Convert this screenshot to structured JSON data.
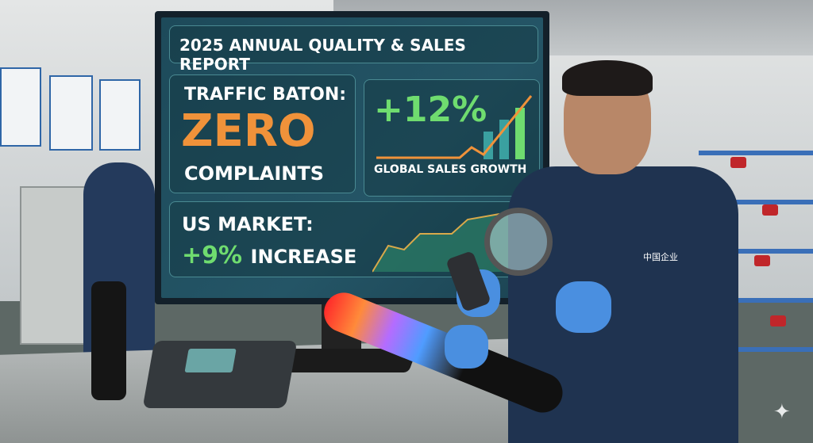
{
  "monitor": {
    "title": "2025 ANNUAL QUALITY & SALES REPORT",
    "baton_label": "TRAFFIC BATON:",
    "zero": "ZERO",
    "complaints": "COMPLAINTS",
    "growth_value": "+12%",
    "growth_label": "GLOBAL SALES GROWTH",
    "us_label": "US MARKET:",
    "us_value": "+9%",
    "us_increase": "INCREASE"
  },
  "jacket_logo_text": "中国企业",
  "colors": {
    "orange": "#f0923a",
    "green": "#6fdc6f",
    "screen": "#245566"
  }
}
